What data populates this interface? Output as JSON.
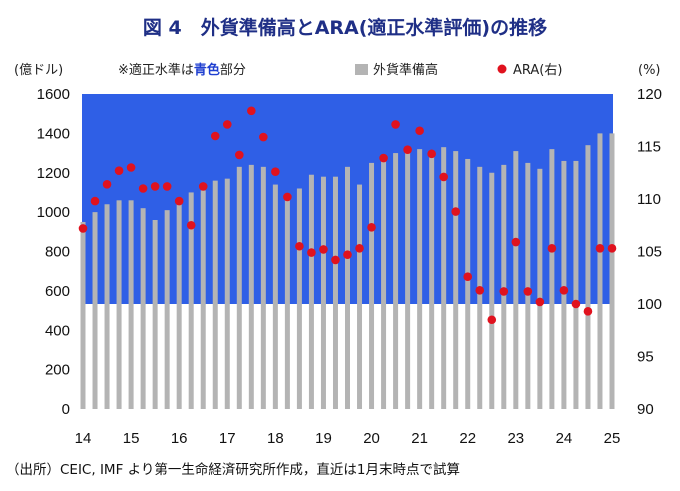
{
  "title": "図 4　外貨準備高とARA(適正水準評価)の推移",
  "left_unit": "(億ドル)",
  "right_unit": "(%)",
  "note_prefix": "※適正水準は",
  "note_highlight": "青色",
  "note_suffix": "部分",
  "legend": {
    "bar_label": "外貨準備高",
    "dot_label": "ARA(右)"
  },
  "source": "（出所）CEIC, IMF より第一生命経済研究所作成，直近は1月末時点で試算",
  "colors": {
    "band": "#2f5fe6",
    "bar": "#b4b4b4",
    "dot": "#e0121e",
    "title": "#1f2f86"
  },
  "chart_data": {
    "type": "bar",
    "title": "図 4　外貨準備高とARA(適正水準評価)の推移",
    "x_tick_labels": [
      "14",
      "15",
      "16",
      "17",
      "18",
      "19",
      "20",
      "21",
      "22",
      "23",
      "24",
      "25"
    ],
    "y_left": {
      "label": "(億ドル)",
      "ylim": [
        0,
        1600
      ],
      "ticks": [
        0,
        200,
        400,
        600,
        800,
        1000,
        1200,
        1400,
        1600
      ]
    },
    "y_right": {
      "label": "(%)",
      "ylim": [
        90,
        120
      ],
      "ticks": [
        90,
        95,
        100,
        105,
        110,
        115,
        120
      ]
    },
    "adequacy_band": {
      "axis": "right",
      "from": 100,
      "to": 120,
      "color": "#2f5fe6"
    },
    "series": [
      {
        "name": "外貨準備高",
        "kind": "bar",
        "axis": "left",
        "x": [
          14.0,
          14.25,
          14.5,
          14.75,
          15.0,
          15.25,
          15.5,
          15.75,
          16.0,
          16.25,
          16.5,
          16.75,
          17.0,
          17.25,
          17.5,
          17.75,
          18.0,
          18.25,
          18.5,
          18.75,
          19.0,
          19.25,
          19.5,
          19.75,
          20.0,
          20.25,
          20.5,
          20.75,
          21.0,
          21.25,
          21.5,
          21.75,
          22.0,
          22.25,
          22.5,
          22.75,
          23.0,
          23.25,
          23.5,
          23.75,
          24.0,
          24.25,
          24.5,
          24.75,
          25.0
        ],
        "values": [
          950,
          1000,
          1040,
          1060,
          1060,
          1020,
          960,
          1010,
          1040,
          1100,
          1110,
          1160,
          1170,
          1230,
          1240,
          1230,
          1140,
          1070,
          1120,
          1190,
          1180,
          1180,
          1230,
          1140,
          1250,
          1280,
          1300,
          1310,
          1320,
          1290,
          1330,
          1310,
          1270,
          1230,
          1200,
          1240,
          1310,
          1250,
          1220,
          1320,
          1260,
          1260,
          1340,
          1400,
          1400
        ]
      },
      {
        "name": "ARA(右)",
        "kind": "dot",
        "axis": "right",
        "x": [
          14.0,
          14.25,
          14.5,
          14.75,
          15.0,
          15.25,
          15.5,
          15.75,
          16.0,
          16.25,
          16.5,
          16.75,
          17.0,
          17.25,
          17.5,
          17.75,
          18.0,
          18.25,
          18.5,
          18.75,
          19.0,
          19.25,
          19.5,
          19.75,
          20.0,
          20.25,
          20.5,
          20.75,
          21.0,
          21.25,
          21.5,
          21.75,
          22.0,
          22.25,
          22.5,
          22.75,
          23.0,
          23.25,
          23.5,
          23.75,
          24.0,
          24.25,
          24.5,
          24.75,
          25.0
        ],
        "values": [
          107.2,
          109.8,
          111.4,
          112.7,
          113.0,
          111.0,
          111.2,
          111.2,
          109.8,
          107.5,
          111.2,
          116.0,
          117.1,
          114.2,
          118.4,
          115.9,
          112.6,
          110.2,
          105.5,
          104.9,
          105.2,
          104.2,
          104.7,
          105.3,
          107.3,
          113.9,
          117.1,
          114.7,
          116.5,
          114.3,
          112.1,
          108.8,
          102.6,
          101.3,
          98.5,
          101.2,
          105.9,
          101.2,
          100.2,
          105.3,
          101.3,
          100.0,
          99.3,
          105.3,
          105.3
        ]
      }
    ]
  }
}
